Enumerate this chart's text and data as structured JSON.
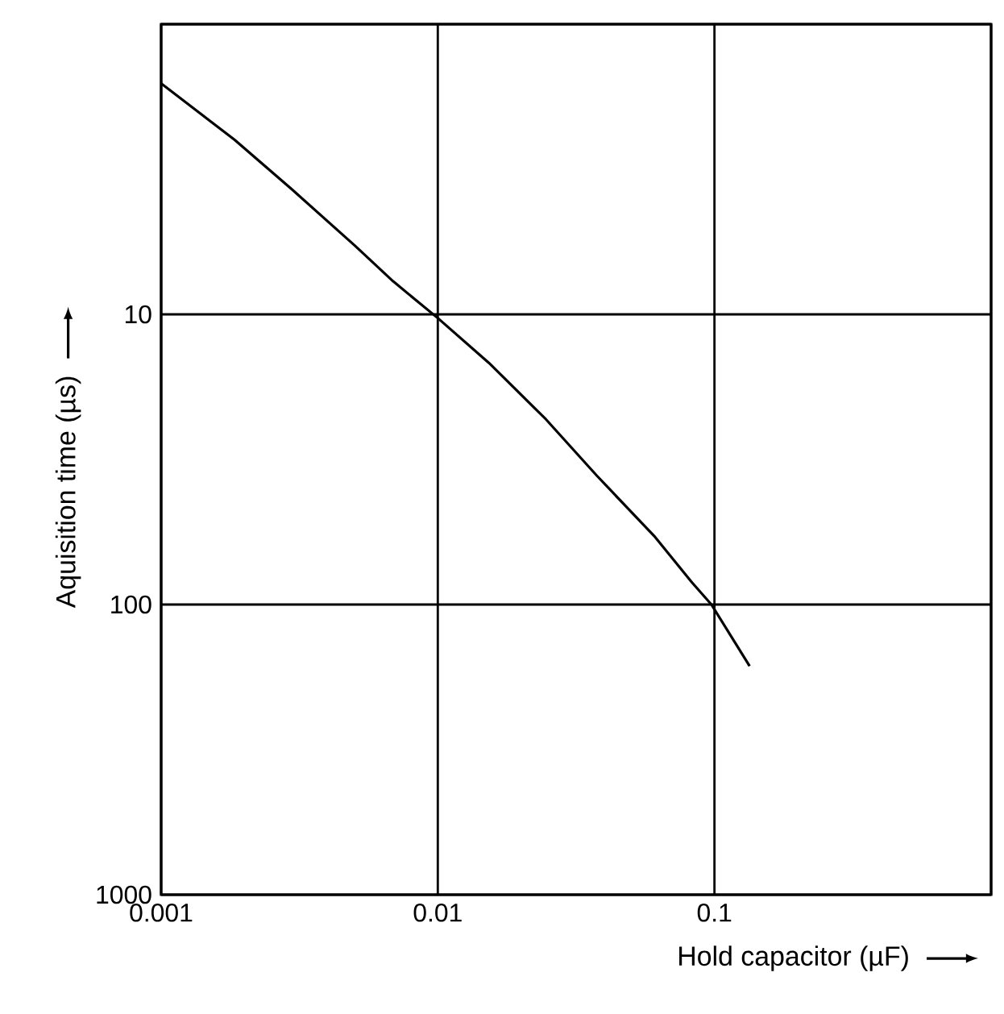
{
  "chart_data": {
    "type": "line",
    "xlabel": "Hold capacitor (µF)",
    "ylabel": "Aquisition time (µs)",
    "x": [
      0.001,
      0.00184,
      0.00296,
      0.00502,
      0.0069,
      0.01,
      0.0153,
      0.0246,
      0.0376,
      0.0605,
      0.083,
      0.0975,
      0.134
    ],
    "values": [
      1.6,
      2.5,
      3.7,
      5.8,
      7.7,
      10.3,
      14.7,
      23,
      36,
      58,
      84,
      100,
      163
    ],
    "color": "#000000",
    "line_style": "solid",
    "log": "xy",
    "grid": true,
    "xlim": [
      0.001,
      1
    ],
    "ylim": [
      1000,
      1
    ],
    "xticks": [
      0.001,
      0.01,
      0.1,
      {
        "value": 1,
        "label": null
      }
    ],
    "yticks": [
      {
        "value": 1,
        "label": null
      },
      10,
      100,
      1000
    ]
  }
}
